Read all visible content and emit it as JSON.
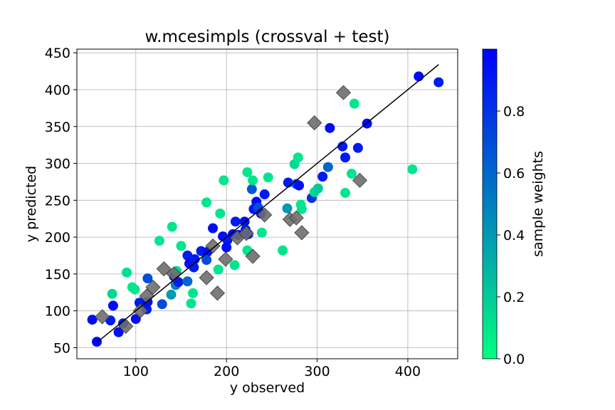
{
  "chart_data": {
    "type": "scatter",
    "title": "w.mcesimpls (crossval + test)",
    "xlabel": "y observed",
    "ylabel": "y predicted",
    "xlim": [
      35,
      455
    ],
    "ylim": [
      35,
      455
    ],
    "xticks": [
      100,
      200,
      300,
      400
    ],
    "yticks": [
      50,
      100,
      150,
      200,
      250,
      300,
      350,
      400,
      450
    ],
    "grid": true,
    "colorbar": {
      "label": "sample weights",
      "range": [
        0,
        1
      ],
      "ticks": [
        "0.0",
        "0.2",
        "0.4",
        "0.6",
        "0.8"
      ],
      "tick_values": [
        0.0,
        0.2,
        0.4,
        0.6,
        0.8
      ],
      "color_low": "#00ff80",
      "color_high": "#0000ff"
    },
    "line": {
      "x": [
        57,
        434
      ],
      "y": [
        57,
        434
      ],
      "color": "#000000"
    },
    "crossval_points": [
      {
        "x": 52,
        "y": 88,
        "w": 0.95
      },
      {
        "x": 57,
        "y": 58,
        "w": 0.98
      },
      {
        "x": 72,
        "y": 87,
        "w": 0.9
      },
      {
        "x": 75,
        "y": 107,
        "w": 0.95
      },
      {
        "x": 74,
        "y": 123,
        "w": 0.15
      },
      {
        "x": 81,
        "y": 71,
        "w": 0.95
      },
      {
        "x": 86,
        "y": 83,
        "w": 0.9
      },
      {
        "x": 90,
        "y": 152,
        "w": 0.12
      },
      {
        "x": 96,
        "y": 132,
        "w": 0.1
      },
      {
        "x": 99,
        "y": 129,
        "w": 0.1
      },
      {
        "x": 100,
        "y": 89,
        "w": 0.95
      },
      {
        "x": 104,
        "y": 111,
        "w": 0.9
      },
      {
        "x": 112,
        "y": 102,
        "w": 0.9
      },
      {
        "x": 113,
        "y": 112,
        "w": 0.95
      },
      {
        "x": 113,
        "y": 144,
        "w": 0.7
      },
      {
        "x": 126,
        "y": 195,
        "w": 0.1
      },
      {
        "x": 129,
        "y": 109,
        "w": 0.7
      },
      {
        "x": 139,
        "y": 122,
        "w": 0.4
      },
      {
        "x": 140,
        "y": 214,
        "w": 0.1
      },
      {
        "x": 142,
        "y": 147,
        "w": 0.95
      },
      {
        "x": 144,
        "y": 135,
        "w": 0.5
      },
      {
        "x": 145,
        "y": 154,
        "w": 0.15
      },
      {
        "x": 147,
        "y": 139,
        "w": 0.9
      },
      {
        "x": 150,
        "y": 188,
        "w": 0.1
      },
      {
        "x": 157,
        "y": 175,
        "w": 0.9
      },
      {
        "x": 157,
        "y": 140,
        "w": 0.6
      },
      {
        "x": 159,
        "y": 164,
        "w": 0.95
      },
      {
        "x": 161,
        "y": 110,
        "w": 0.1
      },
      {
        "x": 163,
        "y": 124,
        "w": 0.1
      },
      {
        "x": 164,
        "y": 159,
        "w": 0.9
      },
      {
        "x": 165,
        "y": 170,
        "w": 0.9
      },
      {
        "x": 172,
        "y": 181,
        "w": 0.9
      },
      {
        "x": 179,
        "y": 180,
        "w": 0.95
      },
      {
        "x": 178,
        "y": 169,
        "w": 0.7
      },
      {
        "x": 178,
        "y": 247,
        "w": 0.1
      },
      {
        "x": 185,
        "y": 212,
        "w": 0.95
      },
      {
        "x": 191,
        "y": 156,
        "w": 0.1
      },
      {
        "x": 193,
        "y": 232,
        "w": 0.1
      },
      {
        "x": 196,
        "y": 201,
        "w": 0.95
      },
      {
        "x": 197,
        "y": 277,
        "w": 0.1
      },
      {
        "x": 201,
        "y": 196,
        "w": 0.9
      },
      {
        "x": 200,
        "y": 186,
        "w": 0.95
      },
      {
        "x": 207,
        "y": 204,
        "w": 0.95
      },
      {
        "x": 209,
        "y": 162,
        "w": 0.1
      },
      {
        "x": 210,
        "y": 221,
        "w": 0.9
      },
      {
        "x": 213,
        "y": 203,
        "w": 0.95
      },
      {
        "x": 220,
        "y": 221,
        "w": 0.95
      },
      {
        "x": 221,
        "y": 210,
        "w": 0.9
      },
      {
        "x": 223,
        "y": 288,
        "w": 0.1
      },
      {
        "x": 223,
        "y": 182,
        "w": 0.1
      },
      {
        "x": 224,
        "y": 204,
        "w": 0.95
      },
      {
        "x": 228,
        "y": 265,
        "w": 0.65
      },
      {
        "x": 229,
        "y": 277,
        "w": 0.1
      },
      {
        "x": 230,
        "y": 238,
        "w": 0.9
      },
      {
        "x": 233,
        "y": 248,
        "w": 0.95
      },
      {
        "x": 235,
        "y": 240,
        "w": 0.7
      },
      {
        "x": 238,
        "y": 232,
        "w": 0.95
      },
      {
        "x": 239,
        "y": 206,
        "w": 0.1
      },
      {
        "x": 242,
        "y": 258,
        "w": 0.9
      },
      {
        "x": 246,
        "y": 281,
        "w": 0.1
      },
      {
        "x": 262,
        "y": 182,
        "w": 0.1
      },
      {
        "x": 267,
        "y": 239,
        "w": 0.4
      },
      {
        "x": 268,
        "y": 274,
        "w": 0.9
      },
      {
        "x": 275,
        "y": 299,
        "w": 0.15
      },
      {
        "x": 277,
        "y": 272,
        "w": 0.7
      },
      {
        "x": 279,
        "y": 308,
        "w": 0.1
      },
      {
        "x": 280,
        "y": 270,
        "w": 0.95
      },
      {
        "x": 282,
        "y": 244,
        "w": 0.1
      },
      {
        "x": 283,
        "y": 238,
        "w": 0.1
      },
      {
        "x": 294,
        "y": 253,
        "w": 0.8
      },
      {
        "x": 297,
        "y": 261,
        "w": 0.15
      },
      {
        "x": 301,
        "y": 266,
        "w": 0.2
      },
      {
        "x": 306,
        "y": 282,
        "w": 0.9
      },
      {
        "x": 312,
        "y": 295,
        "w": 0.6
      },
      {
        "x": 314,
        "y": 348,
        "w": 0.95
      },
      {
        "x": 328,
        "y": 323,
        "w": 0.9
      },
      {
        "x": 331,
        "y": 308,
        "w": 0.9
      },
      {
        "x": 331,
        "y": 260,
        "w": 0.1
      },
      {
        "x": 338,
        "y": 286,
        "w": 0.1
      },
      {
        "x": 341,
        "y": 381,
        "w": 0.1
      },
      {
        "x": 345,
        "y": 321,
        "w": 0.9
      },
      {
        "x": 355,
        "y": 354,
        "w": 0.95
      },
      {
        "x": 405,
        "y": 292,
        "w": 0.1
      },
      {
        "x": 412,
        "y": 418,
        "w": 0.95
      },
      {
        "x": 434,
        "y": 410,
        "w": 0.9
      }
    ],
    "test_points": [
      {
        "x": 63,
        "y": 92
      },
      {
        "x": 89,
        "y": 79
      },
      {
        "x": 105,
        "y": 100
      },
      {
        "x": 112,
        "y": 120
      },
      {
        "x": 119,
        "y": 132
      },
      {
        "x": 131,
        "y": 157
      },
      {
        "x": 142,
        "y": 150
      },
      {
        "x": 178,
        "y": 145
      },
      {
        "x": 185,
        "y": 188
      },
      {
        "x": 190,
        "y": 124
      },
      {
        "x": 199,
        "y": 170
      },
      {
        "x": 212,
        "y": 199
      },
      {
        "x": 222,
        "y": 205
      },
      {
        "x": 229,
        "y": 174
      },
      {
        "x": 242,
        "y": 230
      },
      {
        "x": 270,
        "y": 224
      },
      {
        "x": 277,
        "y": 226
      },
      {
        "x": 283,
        "y": 206
      },
      {
        "x": 297,
        "y": 355
      },
      {
        "x": 329,
        "y": 396
      },
      {
        "x": 347,
        "y": 277
      }
    ]
  }
}
